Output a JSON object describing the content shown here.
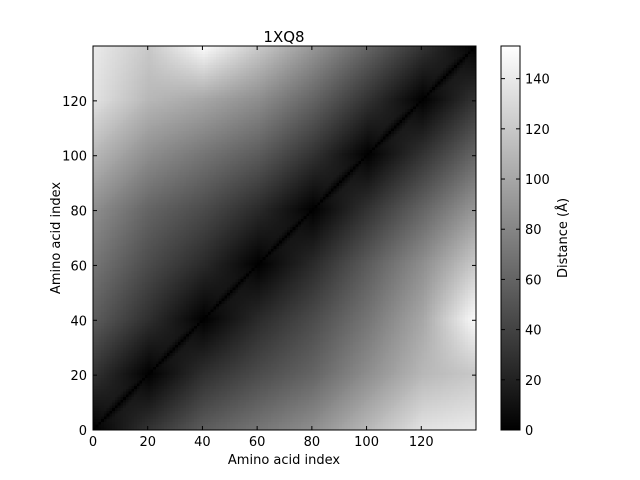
{
  "chart_data": {
    "type": "heatmap",
    "title": "1XQ8",
    "xlabel": "Amino acid index",
    "ylabel": "Amino acid index",
    "xlim": [
      0,
      140
    ],
    "ylim": [
      0,
      140
    ],
    "x_ticks": [
      0,
      20,
      40,
      60,
      80,
      100,
      120
    ],
    "y_ticks": [
      0,
      20,
      40,
      60,
      80,
      100,
      120
    ],
    "grid": false,
    "colormap": "gray",
    "colorbar": {
      "label": "Distance (Å)",
      "range": [
        0,
        153
      ],
      "ticks": [
        0,
        20,
        40,
        60,
        80,
        100,
        120,
        140
      ]
    },
    "description_of_values": "Symmetric pairwise residue distance matrix; zero along the main diagonal, largest distances (~150 Å) between residues near index 40-50 and 130-139, and between residues 0-20 and 110-130.",
    "matrix_samples": {
      "step": 20,
      "indices": [
        0,
        20,
        40,
        60,
        80,
        100,
        120,
        139
      ],
      "values": [
        [
          0,
          30,
          55,
          70,
          85,
          110,
          135,
          140
        ],
        [
          30,
          0,
          28,
          45,
          60,
          85,
          110,
          120
        ],
        [
          55,
          28,
          0,
          25,
          45,
          70,
          100,
          150
        ],
        [
          70,
          45,
          25,
          0,
          25,
          55,
          85,
          120
        ],
        [
          85,
          60,
          45,
          25,
          0,
          30,
          60,
          90
        ],
        [
          110,
          85,
          70,
          55,
          30,
          0,
          30,
          60
        ],
        [
          135,
          110,
          100,
          85,
          60,
          30,
          0,
          30
        ],
        [
          140,
          120,
          150,
          120,
          90,
          60,
          30,
          0
        ]
      ]
    }
  },
  "colors": {
    "background": "#ffffff",
    "axis": "#000000",
    "colormap_low": "#000000",
    "colormap_high": "#ffffff"
  }
}
